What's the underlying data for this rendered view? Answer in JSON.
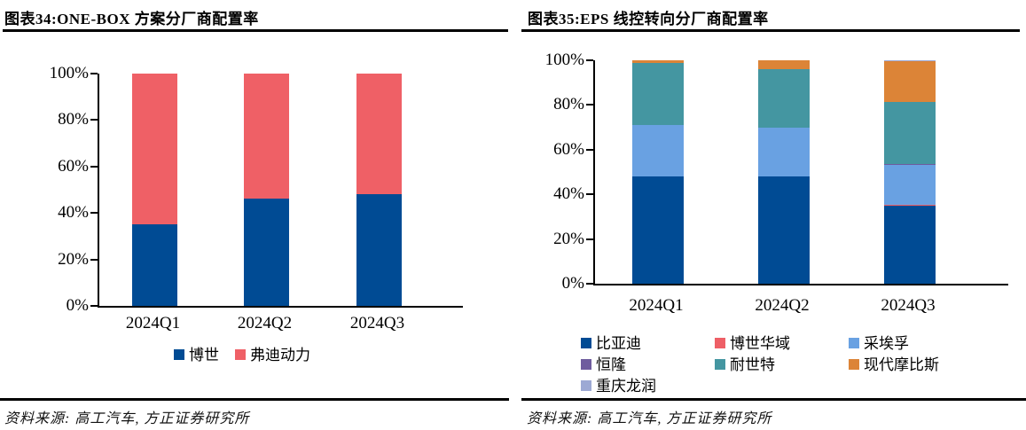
{
  "panel_left": {
    "title": "图表34:ONE-BOX 方案分厂商配置率",
    "source": "资料来源: 高工汽车, 方正证券研究所"
  },
  "panel_right": {
    "title": "图表35:EPS 线控转向分厂商配置率",
    "source": "资料来源: 高工汽车, 方正证券研究所"
  },
  "chart_data": [
    {
      "type": "bar",
      "stacked": true,
      "title": "图表34:ONE-BOX 方案分厂商配置率",
      "categories": [
        "2024Q1",
        "2024Q2",
        "2024Q3"
      ],
      "series": [
        {
          "name": "博世",
          "color": "#004B94",
          "values": [
            35,
            46,
            48
          ]
        },
        {
          "name": "弗迪动力",
          "color": "#EF6066",
          "values": [
            65,
            54,
            52
          ]
        }
      ],
      "ylim": [
        0,
        100
      ],
      "yticks": [
        "0%",
        "20%",
        "40%",
        "60%",
        "80%",
        "100%"
      ],
      "y_unit": "percent",
      "grid": false,
      "legend_position": "bottom"
    },
    {
      "type": "bar",
      "stacked": true,
      "title": "图表35:EPS 线控转向分厂商配置率",
      "categories": [
        "2024Q1",
        "2024Q2",
        "2024Q3"
      ],
      "series": [
        {
          "name": "比亚迪",
          "color": "#004B94",
          "values": [
            48,
            48,
            35
          ]
        },
        {
          "name": "博世华域",
          "color": "#EE5F66",
          "values": [
            0,
            0,
            0.5
          ]
        },
        {
          "name": "采埃孚",
          "color": "#69A1E2",
          "values": [
            23,
            22,
            17.5
          ]
        },
        {
          "name": "恒隆",
          "color": "#6F5C9E",
          "values": [
            0,
            0,
            0.5
          ]
        },
        {
          "name": "耐世特",
          "color": "#4496A1",
          "values": [
            28,
            26,
            28
          ]
        },
        {
          "name": "现代摩比斯",
          "color": "#DC8437",
          "values": [
            1,
            4,
            18
          ]
        },
        {
          "name": "重庆龙润",
          "color": "#9DA9D4",
          "values": [
            0,
            0,
            0.5
          ]
        }
      ],
      "ylim": [
        0,
        100
      ],
      "yticks": [
        "0%",
        "20%",
        "40%",
        "60%",
        "80%",
        "100%"
      ],
      "y_unit": "percent",
      "grid": false,
      "legend_position": "bottom"
    }
  ]
}
